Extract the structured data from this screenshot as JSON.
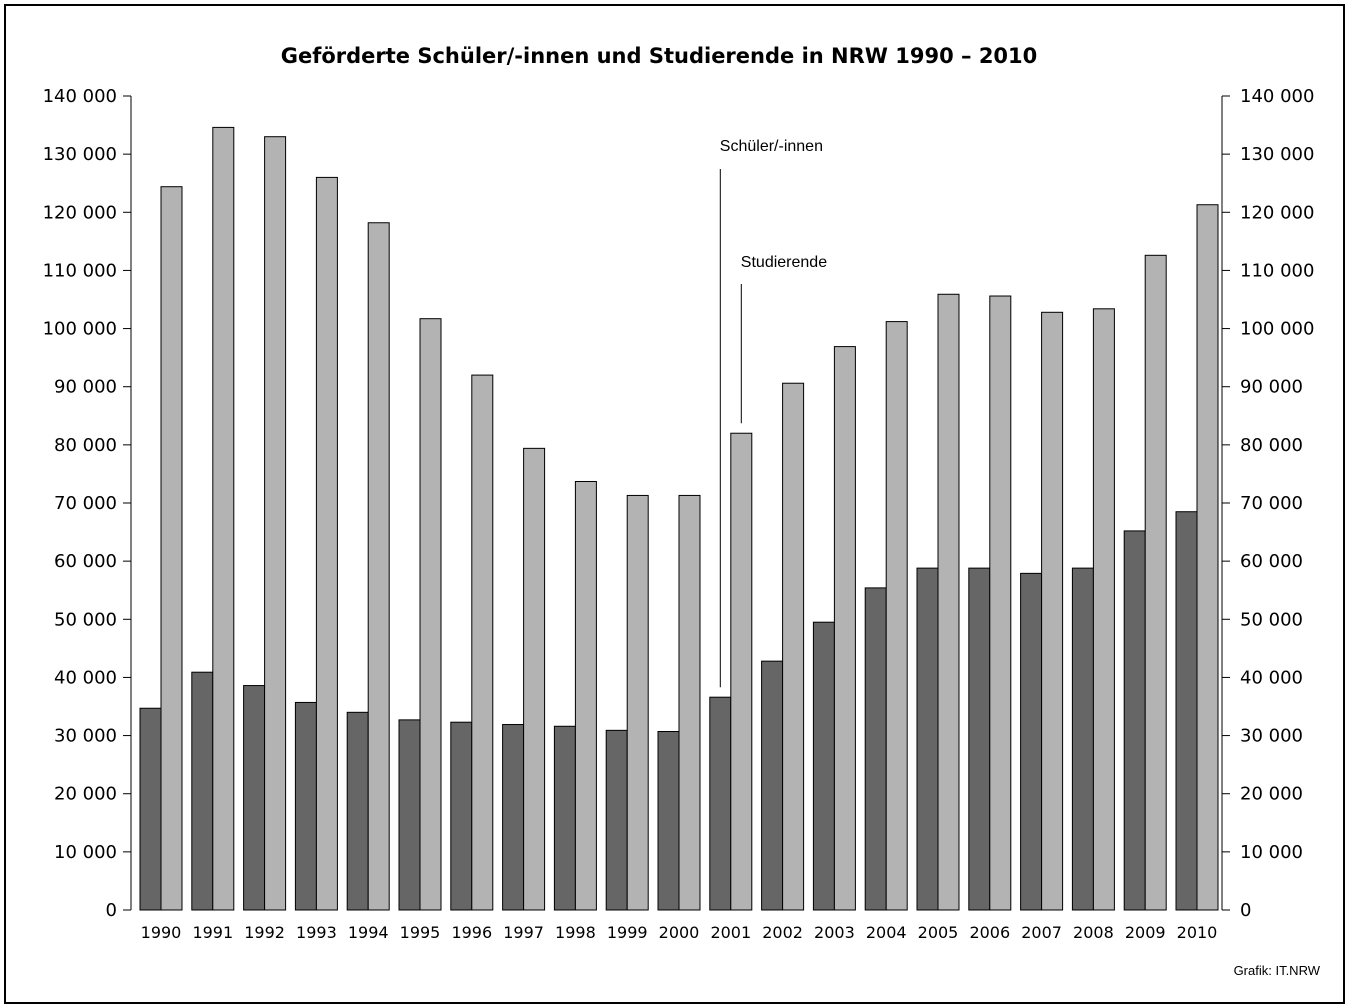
{
  "chart_data": {
    "type": "bar",
    "title": "Geförderte Schüler/-innen und Studierende in NRW 1990 – 2010",
    "credit": "Grafik: IT.NRW",
    "categories": [
      "1990",
      "1991",
      "1992",
      "1993",
      "1994",
      "1995",
      "1996",
      "1997",
      "1998",
      "1999",
      "2000",
      "2001",
      "2002",
      "2003",
      "2004",
      "2005",
      "2006",
      "2007",
      "2008",
      "2009",
      "2010"
    ],
    "series": [
      {
        "name": "Schüler/-innen",
        "color": "#666666",
        "values": [
          34700,
          40900,
          38600,
          35700,
          34000,
          32700,
          32300,
          31900,
          31600,
          30900,
          30700,
          36600,
          42800,
          49500,
          55400,
          58800,
          58800,
          57900,
          58800,
          65200,
          68500
        ]
      },
      {
        "name": "Studierende",
        "color": "#b3b3b3",
        "values": [
          124400,
          134600,
          133000,
          126000,
          118200,
          101700,
          92000,
          79400,
          73700,
          71300,
          71300,
          82000,
          90600,
          96900,
          101200,
          105900,
          105600,
          102800,
          103400,
          112600,
          121300
        ]
      }
    ],
    "ylim": [
      0,
      140000
    ],
    "yticks": [
      "0",
      "10 000",
      "20 000",
      "30 000",
      "40 000",
      "50 000",
      "60 000",
      "70 000",
      "80 000",
      "90 000",
      "100 000",
      "110 000",
      "120 000",
      "130 000",
      "140 000"
    ],
    "grid": false,
    "annotations": [
      {
        "text": "Schüler/-innen",
        "series": 0,
        "category": "2001"
      },
      {
        "text": "Studierende",
        "series": 1,
        "category": "2001"
      }
    ]
  }
}
